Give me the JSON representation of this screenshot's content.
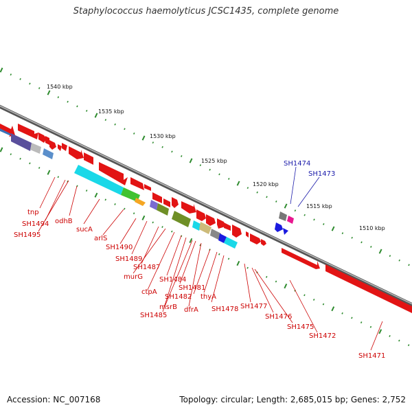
{
  "title": "Staphylococcus haemolyticus JCSC1435, complete genome",
  "footer": {
    "accession": "Accession: NC_007168",
    "topology": "Topology: circular; Length: 2,685,015 bp; Genes: 2,752"
  },
  "colors": {
    "gene_label": "#cc0000",
    "highlight_label": "#1a1aaa",
    "backbone": "#777777",
    "ticks": "#2e8b2e"
  },
  "ruler_labels": [
    "1540 kbp",
    "1535 kbp",
    "1530 kbp",
    "1525 kbp",
    "1520 kbp",
    "1515 kbp",
    "1510 kbp"
  ],
  "gene_labels": {
    "tnp": "tnp",
    "sh1494": "SH1494",
    "sh1495": "SH1495",
    "odhb": "odhB",
    "suca": "sucA",
    "arls": "arlS",
    "sh1490": "SH1490",
    "sh1489": "SH1489",
    "sh1487": "SH1487",
    "murg": "murG",
    "ctpa": "ctpA",
    "sh1484": "SH1484",
    "sh1482": "SH1482",
    "sh1481": "SH1481",
    "msrb": "msrB",
    "sh1485": "SH1485",
    "dfra": "dfrA",
    "thya": "thyA",
    "sh1478": "SH1478",
    "sh1477": "SH1477",
    "sh1476": "SH1476",
    "sh1475": "SH1475",
    "sh1472": "SH1472",
    "sh1471": "SH1471",
    "sh1474": "SH1474",
    "sh1473": "SH1473"
  }
}
